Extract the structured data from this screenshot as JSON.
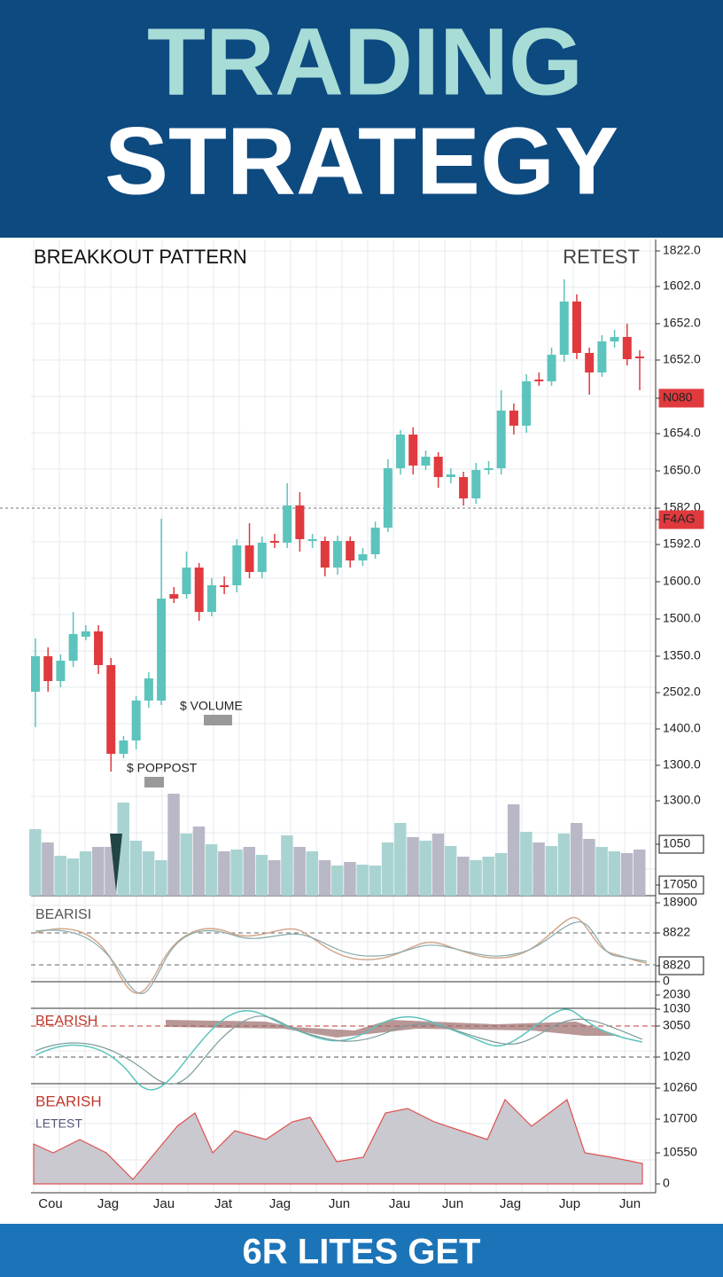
{
  "header": {
    "title_line_1": "TRADING",
    "title_line_2": "STRATEGY"
  },
  "chart_data": {
    "type": "candlestick",
    "title": "BREAKKOUT PATTERN",
    "annotation_right": "RETEST",
    "up_color": "#5cc4bc",
    "down_color": "#e03a3e",
    "ylim": [
      0,
      580
    ],
    "candles": [
      [
        100,
        160,
        60,
        140
      ],
      [
        140,
        150,
        100,
        112
      ],
      [
        112,
        142,
        105,
        135
      ],
      [
        135,
        190,
        128,
        165
      ],
      [
        162,
        175,
        158,
        168
      ],
      [
        168,
        175,
        120,
        130
      ],
      [
        130,
        138,
        10,
        30
      ],
      [
        30,
        50,
        25,
        45
      ],
      [
        45,
        95,
        35,
        90
      ],
      [
        90,
        122,
        82,
        115
      ],
      [
        90,
        295,
        85,
        205
      ],
      [
        210,
        218,
        200,
        205
      ],
      [
        210,
        258,
        205,
        240
      ],
      [
        240,
        245,
        180,
        190
      ],
      [
        190,
        228,
        185,
        220
      ],
      [
        220,
        230,
        210,
        218
      ],
      [
        220,
        272,
        212,
        265
      ],
      [
        265,
        290,
        228,
        235
      ],
      [
        235,
        275,
        228,
        268
      ],
      [
        270,
        278,
        262,
        268
      ],
      [
        268,
        335,
        262,
        310
      ],
      [
        310,
        325,
        258,
        272
      ],
      [
        270,
        278,
        262,
        272
      ],
      [
        270,
        275,
        230,
        240
      ],
      [
        240,
        276,
        232,
        270
      ],
      [
        270,
        275,
        240,
        248
      ],
      [
        248,
        262,
        242,
        255
      ],
      [
        255,
        292,
        250,
        285
      ],
      [
        285,
        362,
        280,
        352
      ],
      [
        352,
        395,
        345,
        390
      ],
      [
        390,
        398,
        345,
        355
      ],
      [
        355,
        372,
        350,
        365
      ],
      [
        365,
        370,
        330,
        342
      ],
      [
        342,
        352,
        335,
        345
      ],
      [
        342,
        348,
        310,
        318
      ],
      [
        318,
        358,
        312,
        350
      ],
      [
        350,
        360,
        345,
        352
      ],
      [
        352,
        440,
        345,
        417
      ],
      [
        417,
        425,
        390,
        400
      ],
      [
        400,
        458,
        392,
        450
      ],
      [
        452,
        460,
        445,
        450
      ],
      [
        450,
        488,
        445,
        480
      ],
      [
        480,
        565,
        472,
        540
      ],
      [
        540,
        548,
        475,
        482
      ],
      [
        482,
        488,
        435,
        460
      ],
      [
        460,
        502,
        455,
        495
      ],
      [
        495,
        508,
        488,
        500
      ],
      [
        500,
        515,
        468,
        475
      ],
      [
        478,
        485,
        440,
        476
      ]
    ],
    "volume": {
      "ylim": [
        0,
        120
      ],
      "up_color": "#a9d3d1",
      "down_color": "#b9b8c6",
      "values": [
        75,
        60,
        45,
        42,
        50,
        55,
        55,
        105,
        62,
        50,
        40,
        115,
        70,
        78,
        58,
        50,
        52,
        55,
        46,
        40,
        68,
        55,
        50,
        40,
        34,
        38,
        35,
        34,
        60,
        82,
        66,
        62,
        70,
        56,
        44,
        40,
        44,
        48,
        103,
        72,
        60,
        56,
        70,
        82,
        64,
        55,
        50,
        48,
        52
      ]
    },
    "annotations": [
      "$ VOLUME",
      "$ POPPOST"
    ],
    "axis_labels": [
      "1822.0",
      "1602.0",
      "1652.0",
      "1652.0",
      "N080",
      "1654.0",
      "1650.0",
      "1582.0",
      "F4AG",
      "1592.0",
      "1600.0",
      "1500.0",
      "1350.0",
      "2502.0",
      "1400.0",
      "1300.0",
      "1300.0",
      "1050",
      "17050",
      "18900",
      "8822",
      "8820",
      "0",
      "2030",
      "1030",
      "3050",
      "1020",
      "10260",
      "10700",
      "10550",
      "0"
    ],
    "x_labels": [
      "Cou",
      "Jag",
      "Jau",
      "Jat",
      "Jag",
      "Jun",
      "Jau",
      "Jun",
      "Jag",
      "Jup",
      "Jun"
    ],
    "panel_labels": [
      "BEARISI",
      "BEARISH",
      "BEARISH",
      "LETEST"
    ]
  },
  "footer": {
    "text": "6R LITES GET"
  }
}
